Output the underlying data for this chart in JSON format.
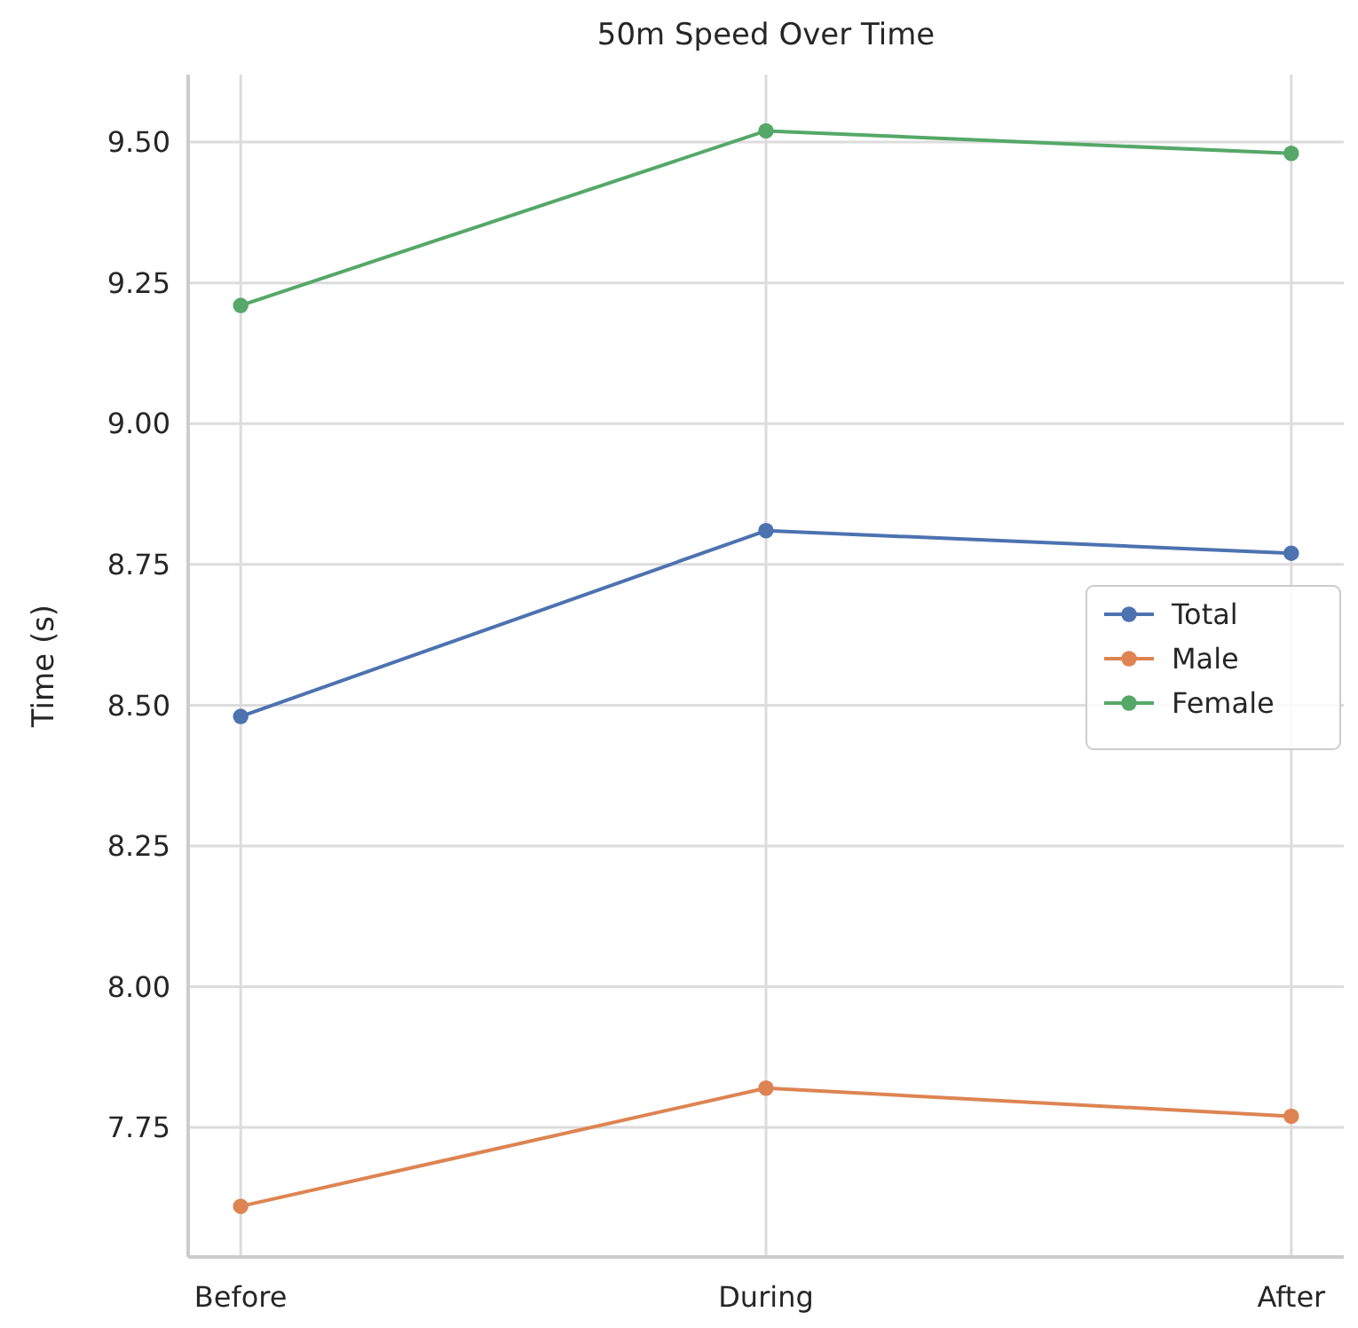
{
  "chart_data": {
    "type": "line",
    "title": "50m Speed Over Time",
    "ylabel": "Time (s)",
    "categories": [
      "Before",
      "During",
      "After"
    ],
    "series": [
      {
        "name": "Total",
        "color": "#4c72b0",
        "values": [
          8.48,
          8.81,
          8.77
        ]
      },
      {
        "name": "Male",
        "color": "#dd8452",
        "values": [
          7.61,
          7.82,
          7.77
        ]
      },
      {
        "name": "Female",
        "color": "#55a868",
        "values": [
          9.21,
          9.52,
          9.48
        ]
      }
    ],
    "ylim": [
      7.52,
      9.62
    ],
    "yticks": [
      {
        "value": 7.75,
        "label": "7.75"
      },
      {
        "value": 8,
        "label": "8.00"
      },
      {
        "value": 8.25,
        "label": "8.25"
      },
      {
        "value": 8.5,
        "label": "8.50"
      },
      {
        "value": 8.75,
        "label": "8.75"
      },
      {
        "value": 9,
        "label": "9.00"
      },
      {
        "value": 9.25,
        "label": "9.25"
      },
      {
        "value": 9.5,
        "label": "9.50"
      }
    ],
    "grid": true,
    "legend": "right",
    "marker": "circle",
    "line_style": "solid"
  }
}
